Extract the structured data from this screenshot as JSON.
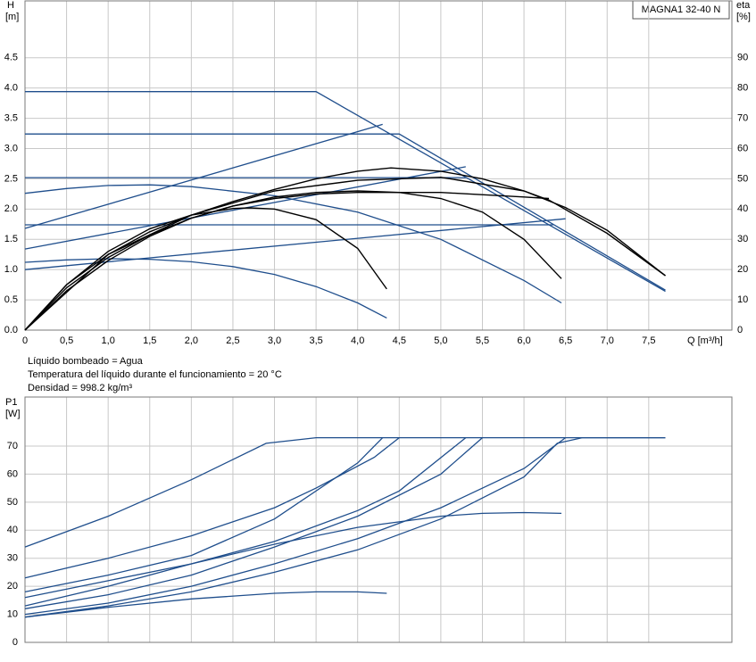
{
  "chart_data": [
    {
      "type": "line",
      "title": "MAGNA1 32-40 N",
      "y_label": "H",
      "y_unit": "[m]",
      "y2_label": "eta",
      "y2_unit": "[%]",
      "x_label": "Q [m³/h]",
      "xlim": [
        0,
        8.5
      ],
      "xticks": [
        0,
        {
          "value": 0.5,
          "label": "0,5"
        },
        {
          "value": 1,
          "label": "1,0"
        },
        {
          "value": 1.5,
          "label": "1,5"
        },
        {
          "value": 2,
          "label": "2,0"
        },
        {
          "value": 2.5,
          "label": "2,5"
        },
        {
          "value": 3,
          "label": "3,0"
        },
        {
          "value": 3.5,
          "label": "3,5"
        },
        {
          "value": 4,
          "label": "4,0"
        },
        {
          "value": 4.5,
          "label": "4,5"
        },
        {
          "value": 5,
          "label": "5,0"
        },
        {
          "value": 5.5,
          "label": "5,5"
        },
        {
          "value": 6,
          "label": "6,0"
        },
        {
          "value": 6.5,
          "label": "6,5"
        },
        {
          "value": 7,
          "label": "7,0"
        },
        {
          "value": 7.5,
          "label": "7,5"
        }
      ],
      "ylim": [
        0,
        5.44
      ],
      "yticks": [
        {
          "value": 0,
          "label": "0.0"
        },
        {
          "value": 0.5,
          "label": "0.5"
        },
        {
          "value": 1,
          "label": "1.0"
        },
        {
          "value": 1.5,
          "label": "1.5"
        },
        {
          "value": 2,
          "label": "2.0"
        },
        {
          "value": 2.5,
          "label": "2.5"
        },
        {
          "value": 3,
          "label": "3.0"
        },
        {
          "value": 3.5,
          "label": "3.5"
        },
        {
          "value": 4,
          "label": "4.0"
        },
        {
          "value": 4.5,
          "label": "4.5"
        }
      ],
      "y2lim": [
        0,
        108.8
      ],
      "y2ticks": [
        0,
        10,
        20,
        30,
        40,
        50,
        60,
        70,
        80,
        90
      ],
      "grid": true,
      "annotations": [
        "Líquido bombeado = Agua",
        "Temperatura del líquido durante el funcionamiento = 20 °C",
        "Densidad = 998.2 kg/m³"
      ],
      "series": [
        {
          "color": "#1f4e8c",
          "x": [
            0,
            3.5,
            7.7
          ],
          "values": [
            3.94,
            3.94,
            0.64
          ]
        },
        {
          "color": "#1f4e8c",
          "x": [
            0,
            4.5,
            7.7
          ],
          "values": [
            3.24,
            3.24,
            0.66
          ]
        },
        {
          "color": "#1f4e8c",
          "x": [
            0,
            5.3
          ],
          "values": [
            2.52,
            2.52
          ]
        },
        {
          "color": "#1f4e8c",
          "x": [
            0,
            6.35
          ],
          "values": [
            1.74,
            1.74
          ]
        },
        {
          "color": "#1f4e8c",
          "x": [
            0,
            0.5,
            1,
            1.5,
            2,
            3,
            4,
            5,
            6,
            6.45
          ],
          "values": [
            2.26,
            2.34,
            2.39,
            2.4,
            2.37,
            2.22,
            1.95,
            1.5,
            0.82,
            0.45
          ]
        },
        {
          "color": "#1f4e8c",
          "x": [
            0,
            0.5,
            1,
            1.5,
            2,
            2.5,
            3,
            3.5,
            4,
            4.35
          ],
          "values": [
            1.12,
            1.16,
            1.18,
            1.17,
            1.13,
            1.05,
            0.92,
            0.72,
            0.45,
            0.2
          ]
        },
        {
          "color": "#1f4e8c",
          "x": [
            0,
            4.3
          ],
          "values": [
            1.68,
            3.4
          ]
        },
        {
          "color": "#1f4e8c",
          "x": [
            0,
            5.3
          ],
          "values": [
            1.34,
            2.7
          ]
        },
        {
          "color": "#1f4e8c",
          "x": [
            0,
            6.5
          ],
          "values": [
            1.0,
            1.84
          ]
        },
        {
          "color": "#000000",
          "axis": "y2",
          "x": [
            0,
            0.5,
            1,
            1.5,
            2,
            2.5,
            3,
            3.5,
            4,
            4.4,
            5,
            5.5,
            6,
            6.5,
            7,
            7.7
          ],
          "values": [
            0,
            15,
            25,
            32.5,
            38,
            42.5,
            46.5,
            50,
            52.5,
            53.6,
            52.5,
            50,
            46,
            40.5,
            33,
            18
          ]
        },
        {
          "color": "#000000",
          "axis": "y2",
          "x": [
            0,
            0.5,
            1,
            1.5,
            2,
            2.5,
            3,
            3.5,
            4,
            4.5,
            5,
            5.5,
            6,
            6.45
          ],
          "values": [
            0,
            14,
            24,
            31.5,
            37,
            41,
            44,
            45.5,
            46,
            45.5,
            43.5,
            39,
            30,
            17
          ]
        },
        {
          "color": "#000000",
          "axis": "y2",
          "x": [
            0,
            0.5,
            1,
            1.5,
            2,
            2.5,
            2.7,
            3,
            3.5,
            4,
            4.35
          ],
          "values": [
            0,
            15,
            26,
            33.5,
            38,
            40.2,
            40.4,
            40,
            36.5,
            27,
            13.6
          ]
        },
        {
          "color": "#000000",
          "axis": "y2",
          "x": [
            0,
            0.5,
            1,
            1.5,
            2,
            2.5,
            3,
            3.5,
            4,
            5,
            6,
            6.3
          ],
          "values": [
            0,
            13,
            23,
            31,
            37,
            41,
            43.5,
            45,
            45.5,
            45.5,
            44,
            43.5
          ]
        },
        {
          "color": "#000000",
          "axis": "y2",
          "x": [
            0,
            1,
            2,
            3,
            4,
            5,
            6,
            6.3,
            7,
            7.7
          ],
          "values": [
            0,
            25,
            38,
            46,
            49.5,
            50.5,
            46,
            43,
            32,
            18
          ]
        }
      ]
    },
    {
      "type": "line",
      "y_label": "P1",
      "y_unit": "[W]",
      "xlim": [
        0,
        8.5
      ],
      "ylim": [
        0,
        87.5
      ],
      "yticks": [
        0,
        10,
        20,
        30,
        40,
        50,
        60,
        70
      ],
      "grid": true,
      "series": [
        {
          "color": "#1f4e8c",
          "x": [
            0,
            1,
            2,
            2.9,
            3.5,
            7.7
          ],
          "values": [
            34,
            45,
            58,
            71,
            73,
            73
          ]
        },
        {
          "color": "#1f4e8c",
          "x": [
            0,
            1,
            2,
            3,
            3.5,
            4.2,
            4.5
          ],
          "values": [
            23,
            30,
            38,
            48,
            55,
            66,
            73
          ]
        },
        {
          "color": "#1f4e8c",
          "x": [
            0,
            1,
            2,
            3,
            4,
            4.3
          ],
          "values": [
            18,
            24,
            31,
            44,
            64,
            73
          ]
        },
        {
          "color": "#1f4e8c",
          "x": [
            0,
            1,
            2,
            3,
            4,
            4.5,
            5.3
          ],
          "values": [
            16,
            22,
            28,
            36,
            47,
            54,
            73
          ]
        },
        {
          "color": "#1f4e8c",
          "x": [
            0,
            1,
            2,
            3,
            4,
            5,
            5.5
          ],
          "values": [
            12,
            17,
            24,
            34,
            45,
            60,
            73
          ]
        },
        {
          "color": "#1f4e8c",
          "x": [
            0,
            1,
            2,
            3,
            4,
            5,
            6,
            6.5
          ],
          "values": [
            10,
            14,
            20,
            28,
            37,
            48,
            62,
            73
          ]
        },
        {
          "color": "#1f4e8c",
          "x": [
            0,
            1,
            2,
            3,
            4,
            5,
            6,
            6.4,
            6.7,
            7.7
          ],
          "values": [
            9,
            13,
            18,
            25,
            33,
            44,
            59,
            71,
            73,
            73
          ]
        },
        {
          "color": "#1f4e8c",
          "x": [
            0,
            1,
            2,
            3,
            3.5,
            4,
            4.35
          ],
          "values": [
            9,
            12.5,
            15.5,
            17.5,
            18,
            18,
            17.5
          ]
        },
        {
          "color": "#1f4e8c",
          "x": [
            0,
            1,
            2,
            3,
            4,
            5,
            5.5,
            6,
            6.45
          ],
          "values": [
            13,
            20,
            28,
            35,
            41,
            45,
            46,
            46.3,
            46
          ]
        }
      ]
    }
  ]
}
